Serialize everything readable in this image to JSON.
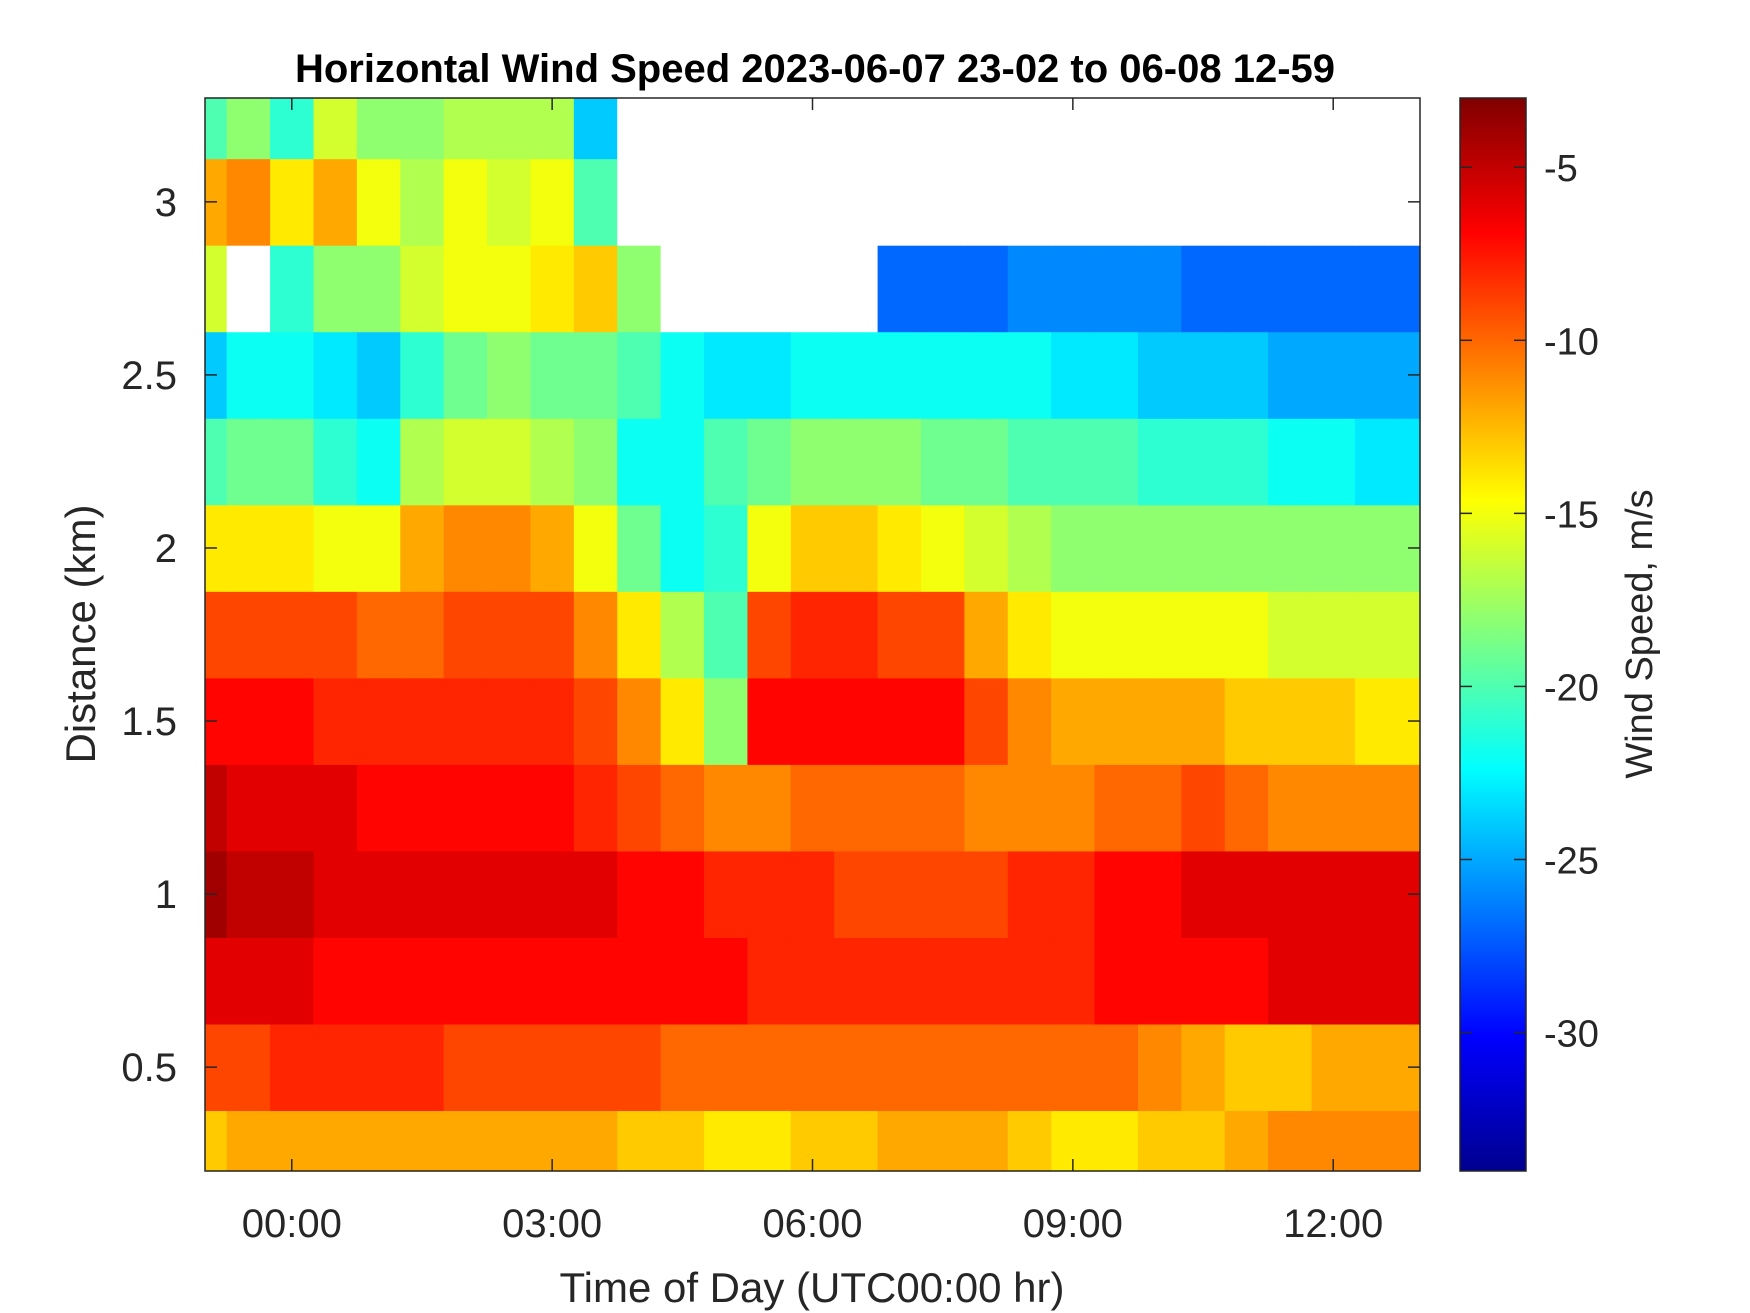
{
  "chart_data": {
    "type": "heatmap",
    "title": "Horizontal Wind Speed 2023-06-07 23-02 to 06-08 12-59",
    "xlabel": "Time of Day (UTC00:00 hr)",
    "ylabel": "Distance (km)",
    "colorbar_label": "Wind Speed, m/s",
    "xlim": [
      -1.0,
      13.0
    ],
    "ylim": [
      0.2,
      3.3
    ],
    "clim": [
      -34,
      -3
    ],
    "x_ticks": [
      0,
      3,
      6,
      9,
      12
    ],
    "x_tick_labels": [
      "00:00",
      "03:00",
      "06:00",
      "09:00",
      "12:00"
    ],
    "y_ticks": [
      0.5,
      1,
      1.5,
      2,
      2.5,
      3
    ],
    "y_tick_labels": [
      "0.5",
      "1",
      "1.5",
      "2",
      "2.5",
      "3"
    ],
    "colorbar_ticks": [
      -5,
      -10,
      -15,
      -20,
      -25,
      -30
    ],
    "colorbar_tick_labels": [
      "-5",
      "-10",
      "-15",
      "-20",
      "-25",
      "-30"
    ],
    "colormap": "jet",
    "missing_data_color": "#ffffff",
    "grid": false,
    "times_hr": [
      -1.0,
      -0.5,
      0.0,
      0.5,
      1.0,
      1.5,
      2.0,
      2.5,
      3.0,
      3.5,
      4.0,
      4.5,
      5.0,
      5.5,
      6.0,
      6.5,
      7.0,
      7.5,
      8.0,
      8.5,
      9.0,
      9.5,
      10.0,
      10.5,
      11.0,
      11.5,
      12.0,
      12.5,
      13.0
    ],
    "heights_km": [
      0.25,
      0.5,
      0.75,
      1.0,
      1.25,
      1.5,
      1.75,
      2.0,
      2.25,
      2.5,
      2.75,
      3.0,
      3.25
    ],
    "values": [
      [
        -13,
        -12,
        -12,
        -12,
        -12,
        -12,
        -12,
        -12,
        -12,
        -12,
        -13,
        -13,
        -14,
        -14,
        -13,
        -13,
        -12,
        -12,
        -12,
        -13,
        -14,
        -14,
        -13,
        -13,
        -12,
        -11,
        -11,
        -11,
        -11
      ],
      [
        -9,
        -9,
        -8,
        -8,
        -8,
        -8,
        -9,
        -9,
        -9,
        -9,
        -9,
        -10,
        -10,
        -10,
        -10,
        -10,
        -10,
        -10,
        -10,
        -10,
        -10,
        -10,
        -11,
        -12,
        -13,
        -13,
        -12,
        -12,
        -12
      ],
      [
        -6,
        -6,
        -6,
        -7,
        -7,
        -7,
        -7,
        -7,
        -7,
        -7,
        -7,
        -7,
        -7,
        -8,
        -8,
        -8,
        -8,
        -8,
        -8,
        -8,
        -8,
        -7,
        -7,
        -7,
        -7,
        -6,
        -6,
        -6,
        -6
      ],
      [
        -4,
        -5,
        -5,
        -6,
        -6,
        -6,
        -6,
        -6,
        -6,
        -6,
        -7,
        -7,
        -8,
        -8,
        -8,
        -9,
        -9,
        -9,
        -9,
        -8,
        -8,
        -7,
        -7,
        -6,
        -6,
        -6,
        -6,
        -6,
        -6
      ],
      [
        -5,
        -6,
        -6,
        -6,
        -7,
        -7,
        -7,
        -7,
        -7,
        -8,
        -9,
        -10,
        -11,
        -11,
        -10,
        -10,
        -10,
        -10,
        -11,
        -11,
        -11,
        -10,
        -10,
        -9,
        -10,
        -11,
        -11,
        -11,
        -11
      ],
      [
        -7,
        -7,
        -7,
        -8,
        -8,
        -8,
        -8,
        -8,
        -8,
        -9,
        -11,
        -14,
        -18,
        -7,
        -7,
        -7,
        -7,
        -7,
        -9,
        -11,
        -12,
        -12,
        -12,
        -12,
        -13,
        -13,
        -13,
        -14,
        -14
      ],
      [
        -9,
        -9,
        -9,
        -9,
        -10,
        -10,
        -9,
        -9,
        -9,
        -11,
        -14,
        -17,
        -20,
        -9,
        -8,
        -8,
        -9,
        -9,
        -12,
        -14,
        -15,
        -15,
        -15,
        -15,
        -15,
        -16,
        -16,
        -16,
        -16
      ],
      [
        -14,
        -14,
        -14,
        -15,
        -15,
        -12,
        -11,
        -11,
        -12,
        -15,
        -19,
        -22,
        -21,
        -15,
        -13,
        -13,
        -14,
        -15,
        -16,
        -17,
        -18,
        -18,
        -18,
        -18,
        -18,
        -18,
        -18,
        -18,
        -18
      ],
      [
        -20,
        -19,
        -19,
        -21,
        -22,
        -17,
        -16,
        -16,
        -17,
        -18,
        -22,
        -22,
        -20,
        -19,
        -18,
        -18,
        -18,
        -19,
        -19,
        -20,
        -20,
        -20,
        -21,
        -21,
        -21,
        -22,
        -22,
        -23,
        -23
      ],
      [
        -24,
        -22,
        -22,
        -23,
        -24,
        -21,
        -19,
        -18,
        -19,
        -19,
        -20,
        -22,
        -23,
        -23,
        -22,
        -22,
        -22,
        -22,
        -22,
        -22,
        -23,
        -23,
        -24,
        -24,
        -24,
        -25,
        -25,
        -25,
        -25
      ],
      [
        -16,
        null,
        -21,
        -18,
        -18,
        -16,
        -15,
        -15,
        -14,
        -13,
        -18,
        null,
        null,
        null,
        null,
        null,
        -27,
        -27,
        -27,
        -26,
        -26,
        -26,
        -26,
        -27,
        -27,
        -27,
        -27,
        -27,
        -27
      ],
      [
        -12,
        -11,
        -14,
        -12,
        -15,
        -17,
        -15,
        -16,
        -15,
        -20,
        null,
        null,
        null,
        null,
        null,
        null,
        null,
        null,
        null,
        null,
        null,
        null,
        null,
        null,
        null,
        null,
        null,
        null,
        null
      ],
      [
        -20,
        -18,
        -21,
        -16,
        -18,
        -18,
        -17,
        -17,
        -17,
        -24,
        null,
        null,
        null,
        null,
        null,
        null,
        null,
        null,
        null,
        null,
        null,
        null,
        null,
        null,
        null,
        null,
        null,
        null,
        null
      ]
    ]
  }
}
